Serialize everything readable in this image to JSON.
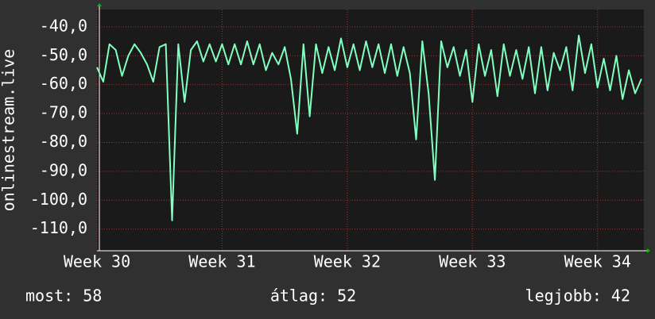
{
  "chart_data": {
    "type": "line",
    "y_label": "onlinestream.live",
    "x": [
      30,
      30.05,
      30.1,
      30.15,
      30.2,
      30.25,
      30.3,
      30.35,
      30.4,
      30.45,
      30.5,
      30.55,
      30.6,
      30.65,
      30.7,
      30.75,
      30.8,
      30.85,
      30.9,
      30.95,
      31,
      31.05,
      31.1,
      31.15,
      31.2,
      31.25,
      31.3,
      31.35,
      31.4,
      31.45,
      31.5,
      31.55,
      31.6,
      31.65,
      31.7,
      31.75,
      31.8,
      31.85,
      31.9,
      31.95,
      32,
      32.05,
      32.1,
      32.15,
      32.2,
      32.25,
      32.3,
      32.35,
      32.4,
      32.45,
      32.5,
      32.55,
      32.6,
      32.65,
      32.7,
      32.75,
      32.8,
      32.85,
      32.9,
      32.95,
      33,
      33.05,
      33.1,
      33.15,
      33.2,
      33.25,
      33.3,
      33.35,
      33.4,
      33.45,
      33.5,
      33.55,
      33.6,
      33.65,
      33.7,
      33.75,
      33.8,
      33.85,
      33.9,
      33.95,
      34,
      34.05,
      34.1,
      34.15,
      34.2,
      34.25,
      34.3,
      34.35
    ],
    "series": [
      {
        "color": "#80ffc0",
        "values": [
          -54,
          -59,
          -46,
          -48,
          -57,
          -50,
          -46,
          -49,
          -53,
          -59,
          -47,
          -46,
          -107,
          -46,
          -66,
          -48,
          -45,
          -52,
          -46,
          -52,
          -46,
          -53,
          -46,
          -53,
          -45,
          -53,
          -46,
          -55,
          -49,
          -53,
          -47,
          -58,
          -77,
          -46,
          -71,
          -46,
          -56,
          -47,
          -55,
          -44,
          -54,
          -46,
          -55,
          -45,
          -54,
          -46,
          -56,
          -46,
          -57,
          -47,
          -56,
          -79,
          -45,
          -63,
          -93,
          -45,
          -54,
          -47,
          -57,
          -48,
          -66,
          -46,
          -57,
          -48,
          -64,
          -46,
          -57,
          -48,
          -58,
          -47,
          -63,
          -47,
          -62,
          -49,
          -55,
          -47,
          -62,
          -43,
          -56,
          -46,
          -61,
          -51,
          -62,
          -50,
          -65,
          -55,
          -63,
          -58
        ]
      }
    ],
    "xlim": [
      30,
      34.37
    ],
    "xticks": [
      {
        "value": 30,
        "label": "Week 30"
      },
      {
        "value": 31,
        "label": "Week 31"
      },
      {
        "value": 32,
        "label": "Week 32"
      },
      {
        "value": 33,
        "label": "Week 33"
      },
      {
        "value": 34,
        "label": "Week 34"
      }
    ],
    "ylim": [
      -117.5,
      -34
    ],
    "yticks": [
      {
        "value": -40,
        "label": "-40,0"
      },
      {
        "value": -50,
        "label": "-50,0"
      },
      {
        "value": -60,
        "label": "-60,0"
      },
      {
        "value": -70,
        "label": "-70,0"
      },
      {
        "value": -80,
        "label": "-80,0"
      },
      {
        "value": -90,
        "label": "-90,0"
      },
      {
        "value": -100,
        "label": "-100,0"
      },
      {
        "value": -110,
        "label": "-110,0"
      }
    ],
    "grid": true,
    "stats": [
      "most: 58",
      "átlag: 52",
      "legjobb: 42"
    ]
  }
}
